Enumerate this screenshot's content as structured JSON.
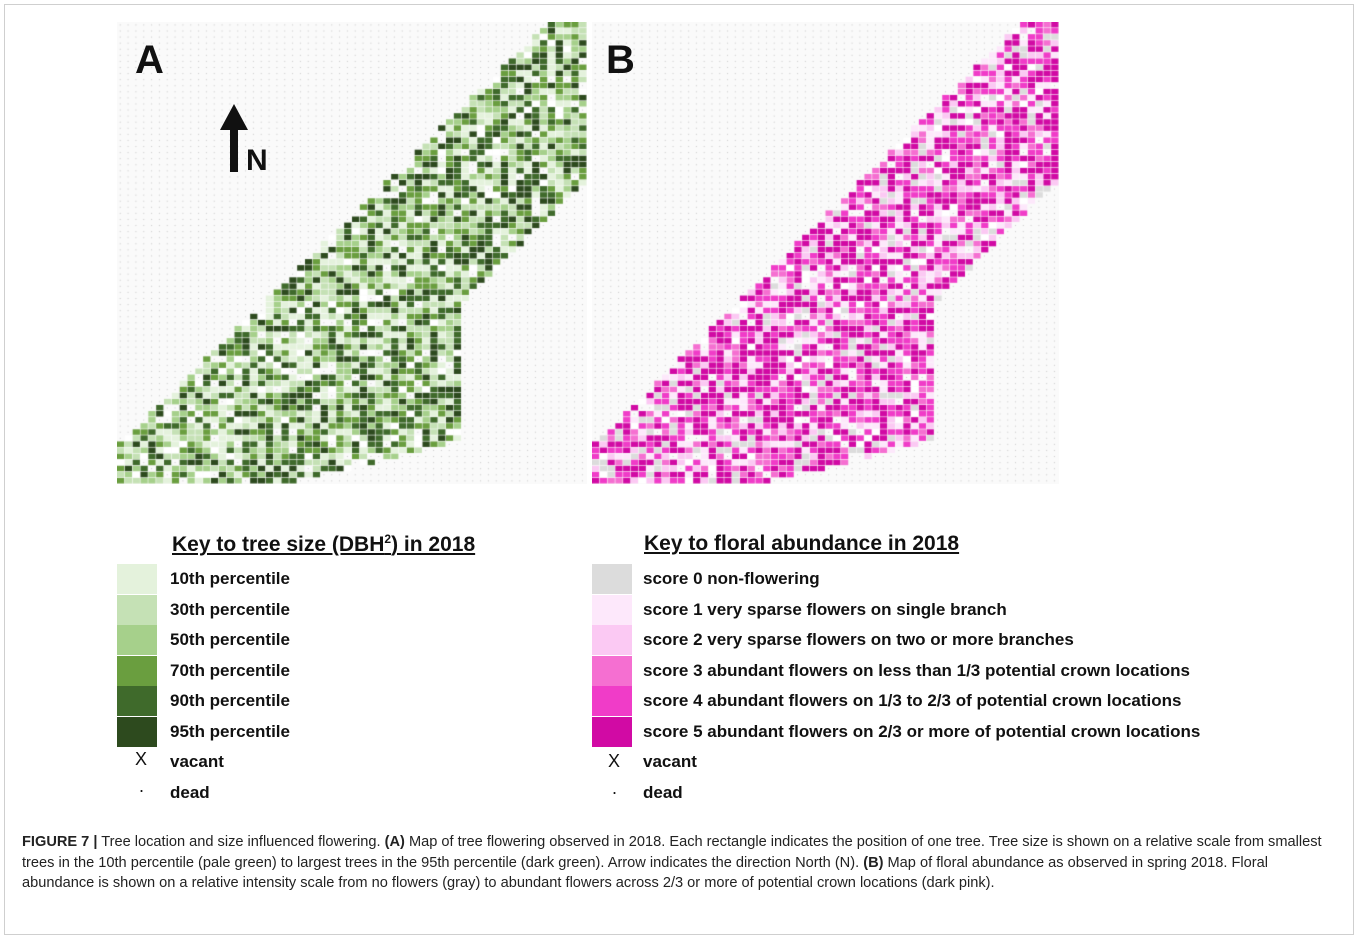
{
  "panels": {
    "a_label": "A",
    "b_label": "B",
    "north_label": "N"
  },
  "legend_size": {
    "title": "Key to tree size (DBH",
    "title_sup": "2",
    "title_end": ") in 2018",
    "items": [
      {
        "label": "10th percentile",
        "color": "#e4f2dc"
      },
      {
        "label": "30th percentile",
        "color": "#c5e1b5"
      },
      {
        "label": "50th percentile",
        "color": "#a6d08b"
      },
      {
        "label": "70th percentile",
        "color": "#6a9e3f"
      },
      {
        "label": "90th percentile",
        "color": "#3f6a2b"
      },
      {
        "label": "95th percentile",
        "color": "#2d4a1e"
      }
    ],
    "vacant_symbol": "X",
    "vacant_label": "vacant",
    "dead_symbol": ".",
    "dead_label": "dead"
  },
  "legend_floral": {
    "title": "Key to floral abundance in 2018",
    "items": [
      {
        "label": "score 0 non-flowering",
        "color": "#dcdcdc"
      },
      {
        "label": "score 1 very sparse flowers on single branch",
        "color": "#fde8fb"
      },
      {
        "label": "score 2 very sparse flowers on two or more branches",
        "color": "#fbc9f3"
      },
      {
        "label": "score 3 abundant flowers on less than 1/3 potential crown locations",
        "color": "#f56fd1"
      },
      {
        "label": "score 4 abundant flowers on 1/3 to 2/3 of potential crown locations",
        "color": "#f03cc8"
      },
      {
        "label": "score 5 abundant flowers on 2/3 or more of potential crown locations",
        "color": "#d10aa4"
      }
    ],
    "vacant_symbol": "X",
    "vacant_label": "vacant",
    "dead_symbol": ".",
    "dead_label": "dead"
  },
  "caption": {
    "figure_label": "FIGURE 7 |",
    "lead": " Tree location and size influenced flowering. ",
    "a_tag": "(A)",
    "a_text": " Map of tree flowering observed in 2018. Each rectangle indicates the position of one tree. Tree size is shown on a relative scale from smallest trees in the 10th percentile (pale green) to largest trees in the 95th percentile (dark green). Arrow indicates the direction North (N). ",
    "b_tag": "(B)",
    "b_text": " Map of floral abundance as observed in spring 2018. Floral abundance is shown on a relative intensity scale from no flowers (gray) to abundant flowers across 2/3 or more of potential crown locations (dark pink)."
  }
}
